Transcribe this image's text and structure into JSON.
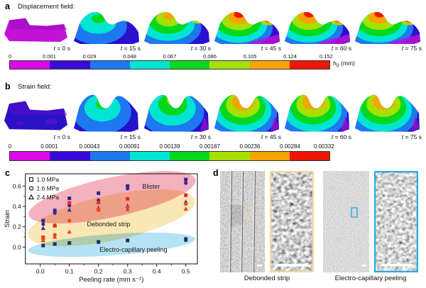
{
  "panels": {
    "a": {
      "label": "a",
      "title": "Displacement field:",
      "time_symbol": "t",
      "time_unit": "s",
      "times": [
        "0",
        "15",
        "30",
        "45",
        "60",
        "75"
      ],
      "colorbar": {
        "ticks": [
          "0",
          "0.001",
          "0.029",
          "0.048",
          "0.067",
          "0.086",
          "0.105",
          "0.124",
          "0.152"
        ],
        "unit_symbol": "h",
        "unit_subscript": "0",
        "unit_rest": " (mm)",
        "segment_colors": [
          "#DA0BE8",
          "#3A0BD8",
          "#1E78F0",
          "#00E5D2",
          "#06D81E",
          "#A6E003",
          "#F5A400",
          "#EE1604"
        ]
      }
    },
    "b": {
      "label": "b",
      "title": "Strain field:",
      "time_symbol": "t",
      "time_unit": "s",
      "times": [
        "0",
        "15",
        "30",
        "45",
        "60",
        "75"
      ],
      "colorbar": {
        "ticks": [
          "0",
          "0.0001",
          "0.00043",
          "0.00091",
          "0.00139",
          "0.00187",
          "0.00236",
          "0.00284",
          "0.00332"
        ],
        "segment_colors": [
          "#DA0BE8",
          "#3A0BD8",
          "#1E78F0",
          "#00E5D2",
          "#06D81E",
          "#A6E003",
          "#F5A400",
          "#EE1604"
        ]
      }
    },
    "c": {
      "label": "c"
    },
    "d": {
      "label": "d",
      "captions": [
        "Debonded strip",
        "Electro-capillary peeling"
      ],
      "highlight_color_left": "#EFD9A0",
      "highlight_color_right": "#29ABE2"
    }
  },
  "chart_data": {
    "type": "scatter",
    "title": "",
    "xlabel": "Peeling rate (mm s⁻¹)",
    "ylabel": "Strain",
    "xlim": [
      -0.05,
      0.55
    ],
    "ylim": [
      -0.17,
      0.72
    ],
    "xticks": [
      "0.0",
      "0.1",
      "0.2",
      "0.3",
      "0.4",
      "0.5"
    ],
    "yticks": [
      "0.0",
      "0.2",
      "0.4",
      "0.6"
    ],
    "grid": false,
    "legend_position": "top-left-inside",
    "legend": [
      {
        "marker": "square",
        "label": "1.0 MPa"
      },
      {
        "marker": "circle",
        "label": "1.6 MPa"
      },
      {
        "marker": "triangle",
        "label": "2.4 MPa"
      }
    ],
    "x": [
      0.01,
      0.05,
      0.1,
      0.2,
      0.3,
      0.5
    ],
    "series": [
      {
        "name": "1.0 MPa (navy, blister)",
        "marker": "square",
        "color": "#2B2A8C",
        "values": [
          0.26,
          0.36,
          0.48,
          0.53,
          0.6,
          0.665
        ]
      },
      {
        "name": "1.6 MPa (navy, blister)",
        "marker": "circle",
        "color": "#3B2A92",
        "values": [
          0.225,
          0.335,
          0.41,
          0.46,
          0.575,
          0.63
        ]
      },
      {
        "name": "2.4 MPa (navy, blister)",
        "marker": "triangle",
        "color": "#46289C",
        "values": [
          0.185,
          0.215,
          0.365,
          0.385,
          0.405,
          0.445
        ]
      },
      {
        "name": "1.0 MPa (red, debonded strip)",
        "marker": "square",
        "color": "#E8281E",
        "values": [
          0.095,
          0.21,
          0.435,
          0.44,
          0.475,
          0.51
        ]
      },
      {
        "name": "1.6 MPa (red, debonded strip)",
        "marker": "circle",
        "color": "#EE4418",
        "values": [
          0.08,
          0.12,
          0.26,
          0.375,
          0.39,
          0.425
        ]
      },
      {
        "name": "2.4 MPa (red, debonded strip)",
        "marker": "triangle",
        "color": "#F03C14",
        "values": [
          0.065,
          0.1,
          0.15,
          0.365,
          0.37,
          0.375
        ]
      },
      {
        "name": "electro-capillary peeling (dark navy)",
        "marker": "square",
        "color": "#20325E",
        "values": [
          0.015,
          0.03,
          0.04,
          0.05,
          0.065,
          0.075
        ],
        "error": [
          0.012,
          0.012,
          0.012,
          0.015,
          0.015,
          0.02
        ]
      }
    ],
    "regions": [
      {
        "label": "Blister",
        "fill": "#F2A3B3",
        "cx": 0.247,
        "cy": 0.49,
        "rx": 0.293,
        "ry": 0.195,
        "rot": -12,
        "label_x": 0.381,
        "label_y": 0.595
      },
      {
        "label": "Debonded strip",
        "fill": "#F8E3A8",
        "cx": 0.245,
        "cy": 0.288,
        "rx": 0.293,
        "ry": 0.223,
        "rot": -12,
        "label_x": 0.235,
        "label_y": 0.225
      },
      {
        "label": "Electro-capillary peeling",
        "fill": "#A8DDF2",
        "cx": 0.245,
        "cy": 0.023,
        "rx": 0.288,
        "ry": 0.105,
        "rot": -4,
        "label_x": 0.32,
        "label_y": -0.026
      }
    ]
  }
}
